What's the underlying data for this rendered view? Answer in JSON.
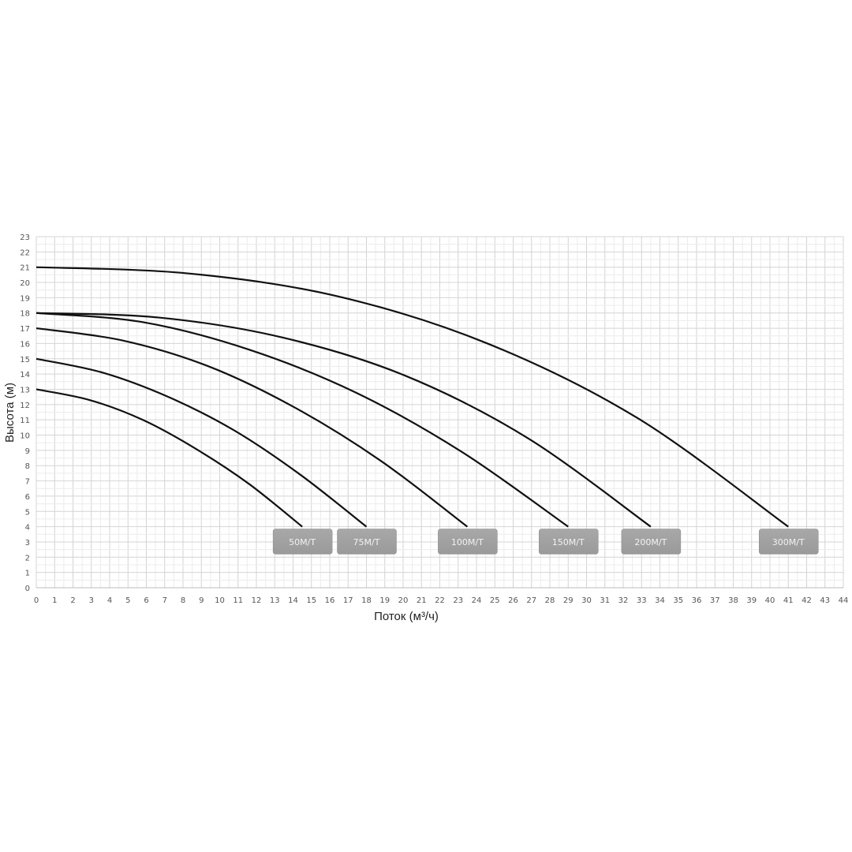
{
  "chart_data": {
    "type": "line",
    "title": "",
    "xlabel": "Поток (м³/ч)",
    "ylabel": "Высота (м)",
    "xlim": [
      0,
      44
    ],
    "ylim": [
      0,
      23
    ],
    "x_ticks": [
      0,
      1,
      2,
      3,
      4,
      5,
      6,
      7,
      8,
      9,
      10,
      11,
      12,
      13,
      14,
      15,
      16,
      17,
      18,
      19,
      20,
      21,
      22,
      23,
      24,
      25,
      26,
      27,
      28,
      29,
      30,
      31,
      32,
      33,
      34,
      35,
      36,
      37,
      38,
      39,
      40,
      41,
      42,
      43,
      44
    ],
    "y_ticks": [
      0,
      1,
      2,
      3,
      4,
      5,
      6,
      7,
      8,
      9,
      10,
      11,
      12,
      13,
      14,
      15,
      16,
      17,
      18,
      19,
      20,
      21,
      22,
      23
    ],
    "grid": true,
    "line_color": "#111111",
    "label_box_color": "#9a9a9a",
    "series": [
      {
        "name": "50M/T",
        "x": [
          0,
          2.9,
          5.8,
          8.7,
          11.6,
          14.5
        ],
        "y": [
          13,
          12.3,
          11.0,
          9.1,
          6.8,
          4
        ]
      },
      {
        "name": "75M/T",
        "x": [
          0,
          3.6,
          7.2,
          10.8,
          14.4,
          18
        ],
        "y": [
          15,
          14.1,
          12.5,
          10.3,
          7.4,
          4
        ]
      },
      {
        "name": "100M/T",
        "x": [
          0,
          4.7,
          9.4,
          14.1,
          18.8,
          23.5
        ],
        "y": [
          17,
          16.2,
          14.5,
          11.8,
          8.3,
          4
        ]
      },
      {
        "name": "150M/T",
        "x": [
          0,
          5.8,
          11.6,
          17.4,
          23.2,
          29
        ],
        "y": [
          18,
          17.4,
          15.6,
          12.8,
          8.9,
          4
        ]
      },
      {
        "name": "200M/T",
        "x": [
          0,
          6.7,
          13.4,
          20.1,
          26.8,
          33.5
        ],
        "y": [
          18,
          17.7,
          16.4,
          13.9,
          9.8,
          4
        ]
      },
      {
        "name": "300M/T",
        "x": [
          0,
          8.2,
          16.4,
          24.6,
          32.8,
          41
        ],
        "y": [
          21,
          20.6,
          19.1,
          16.0,
          11.1,
          4
        ]
      }
    ]
  }
}
